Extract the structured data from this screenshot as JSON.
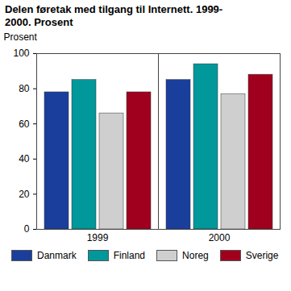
{
  "chart_data": {
    "type": "bar",
    "title": "Delen føretak med tilgang til Internett. 1999-2000. Prosent",
    "y_label": "Prosent",
    "categories": [
      "1999",
      "2000"
    ],
    "series": [
      {
        "name": "Danmark",
        "color": "#1a3e9c",
        "values": [
          78,
          85
        ]
      },
      {
        "name": "Finland",
        "color": "#00989a",
        "values": [
          85,
          94
        ]
      },
      {
        "name": "Noreg",
        "color": "#cfcfcf",
        "values": [
          66,
          77
        ]
      },
      {
        "name": "Sverige",
        "color": "#a0001e",
        "values": [
          78,
          88
        ]
      }
    ],
    "ylim": [
      0,
      100
    ],
    "yticks": [
      0,
      20,
      40,
      60,
      80,
      100
    ],
    "grid": false,
    "legend": "bottom"
  }
}
